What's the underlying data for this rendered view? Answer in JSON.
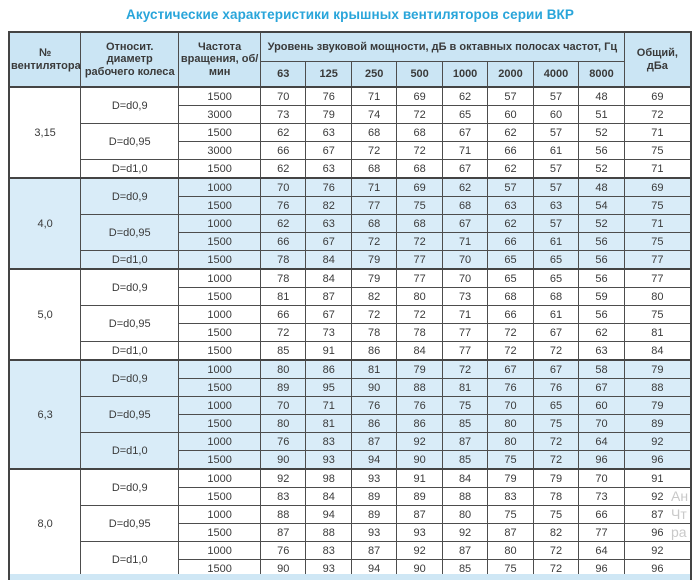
{
  "title": "Акустические характеристики крышных вентиляторов серии ВКР",
  "table": {
    "headers": {
      "fan_number": "№ вентилятора",
      "rel_diameter": "Относит. диаметр рабочего колеса",
      "rotation_freq": "Частота вращения, об/мин",
      "sound_power": "Уровень звуковой мощности, дБ в октавных полосах частот, Гц",
      "freq_bands": [
        "63",
        "125",
        "250",
        "500",
        "1000",
        "2000",
        "4000",
        "8000"
      ],
      "total": "Общий, дБа"
    },
    "groups": [
      {
        "fan": "3,15",
        "shaded": false,
        "diameters": [
          {
            "label": "D=d0,9",
            "rows": [
              {
                "rpm": "1500",
                "levels": [
                  70,
                  76,
                  71,
                  69,
                  62,
                  57,
                  57,
                  48
                ],
                "total": 69
              },
              {
                "rpm": "3000",
                "levels": [
                  73,
                  79,
                  74,
                  72,
                  65,
                  60,
                  60,
                  51
                ],
                "total": 72
              }
            ]
          },
          {
            "label": "D=d0,95",
            "rows": [
              {
                "rpm": "1500",
                "levels": [
                  62,
                  63,
                  68,
                  68,
                  67,
                  62,
                  57,
                  52
                ],
                "total": 71
              },
              {
                "rpm": "3000",
                "levels": [
                  66,
                  67,
                  72,
                  72,
                  71,
                  66,
                  61,
                  56
                ],
                "total": 75
              }
            ]
          },
          {
            "label": "D=d1,0",
            "rows": [
              {
                "rpm": "1500",
                "levels": [
                  62,
                  63,
                  68,
                  68,
                  67,
                  62,
                  57,
                  52
                ],
                "total": 71
              }
            ]
          }
        ]
      },
      {
        "fan": "4,0",
        "shaded": true,
        "diameters": [
          {
            "label": "D=d0,9",
            "rows": [
              {
                "rpm": "1000",
                "levels": [
                  70,
                  76,
                  71,
                  69,
                  62,
                  57,
                  57,
                  48
                ],
                "total": 69
              },
              {
                "rpm": "1500",
                "levels": [
                  76,
                  82,
                  77,
                  75,
                  68,
                  63,
                  63,
                  54
                ],
                "total": 75
              }
            ]
          },
          {
            "label": "D=d0,95",
            "rows": [
              {
                "rpm": "1000",
                "levels": [
                  62,
                  63,
                  68,
                  68,
                  67,
                  62,
                  57,
                  52
                ],
                "total": 71
              },
              {
                "rpm": "1500",
                "levels": [
                  66,
                  67,
                  72,
                  72,
                  71,
                  66,
                  61,
                  56
                ],
                "total": 75
              }
            ]
          },
          {
            "label": "D=d1,0",
            "rows": [
              {
                "rpm": "1500",
                "levels": [
                  78,
                  84,
                  79,
                  77,
                  70,
                  65,
                  65,
                  56
                ],
                "total": 77
              }
            ]
          }
        ]
      },
      {
        "fan": "5,0",
        "shaded": false,
        "diameters": [
          {
            "label": "D=d0,9",
            "rows": [
              {
                "rpm": "1000",
                "levels": [
                  78,
                  84,
                  79,
                  77,
                  70,
                  65,
                  65,
                  56
                ],
                "total": 77
              },
              {
                "rpm": "1500",
                "levels": [
                  81,
                  87,
                  82,
                  80,
                  73,
                  68,
                  68,
                  59
                ],
                "total": 80
              }
            ]
          },
          {
            "label": "D=d0,95",
            "rows": [
              {
                "rpm": "1000",
                "levels": [
                  66,
                  67,
                  72,
                  72,
                  71,
                  66,
                  61,
                  56
                ],
                "total": 75
              },
              {
                "rpm": "1500",
                "levels": [
                  72,
                  73,
                  78,
                  78,
                  77,
                  72,
                  67,
                  62
                ],
                "total": 81
              }
            ]
          },
          {
            "label": "D=d1,0",
            "rows": [
              {
                "rpm": "1500",
                "levels": [
                  85,
                  91,
                  86,
                  84,
                  77,
                  72,
                  72,
                  63
                ],
                "total": 84
              }
            ]
          }
        ]
      },
      {
        "fan": "6,3",
        "shaded": true,
        "diameters": [
          {
            "label": "D=d0,9",
            "rows": [
              {
                "rpm": "1000",
                "levels": [
                  80,
                  86,
                  81,
                  79,
                  72,
                  67,
                  67,
                  58
                ],
                "total": 79
              },
              {
                "rpm": "1500",
                "levels": [
                  89,
                  95,
                  90,
                  88,
                  81,
                  76,
                  76,
                  67
                ],
                "total": 88
              }
            ]
          },
          {
            "label": "D=d0,95",
            "rows": [
              {
                "rpm": "1000",
                "levels": [
                  70,
                  71,
                  76,
                  76,
                  75,
                  70,
                  65,
                  60
                ],
                "total": 79
              },
              {
                "rpm": "1500",
                "levels": [
                  80,
                  81,
                  86,
                  86,
                  85,
                  80,
                  75,
                  70
                ],
                "total": 89
              }
            ]
          },
          {
            "label": "D=d1,0",
            "rows": [
              {
                "rpm": "1000",
                "levels": [
                  76,
                  83,
                  87,
                  92,
                  87,
                  80,
                  72,
                  64
                ],
                "total": 92
              },
              {
                "rpm": "1500",
                "levels": [
                  90,
                  93,
                  94,
                  90,
                  85,
                  75,
                  72,
                  96
                ],
                "total": 96
              }
            ]
          }
        ]
      },
      {
        "fan": "8,0",
        "shaded": false,
        "diameters": [
          {
            "label": "D=d0,9",
            "rows": [
              {
                "rpm": "1000",
                "levels": [
                  92,
                  98,
                  93,
                  91,
                  84,
                  79,
                  79,
                  70
                ],
                "total": 91
              },
              {
                "rpm": "1500",
                "levels": [
                  83,
                  84,
                  89,
                  89,
                  88,
                  83,
                  78,
                  73
                ],
                "total": 92
              }
            ]
          },
          {
            "label": "D=d0,95",
            "rows": [
              {
                "rpm": "1000",
                "levels": [
                  88,
                  94,
                  89,
                  87,
                  80,
                  75,
                  75,
                  66
                ],
                "total": 87
              },
              {
                "rpm": "1500",
                "levels": [
                  87,
                  88,
                  93,
                  93,
                  92,
                  87,
                  82,
                  77
                ],
                "total": 96
              }
            ]
          },
          {
            "label": "D=d1,0",
            "rows": [
              {
                "rpm": "1000",
                "levels": [
                  76,
                  83,
                  87,
                  92,
                  87,
                  80,
                  72,
                  64
                ],
                "total": 92
              },
              {
                "rpm": "1500",
                "levels": [
                  90,
                  93,
                  94,
                  90,
                  85,
                  75,
                  72,
                  96
                ],
                "total": 96
              }
            ]
          }
        ]
      }
    ]
  },
  "watermark": {
    "line1": "Ан",
    "line2": "Чт",
    "line3": "ра"
  },
  "colors": {
    "title": "#29a5da",
    "header_bg": "#cbe5f4",
    "shaded_row_bg": "#d9ecf8",
    "border": "#4d4d4d"
  }
}
